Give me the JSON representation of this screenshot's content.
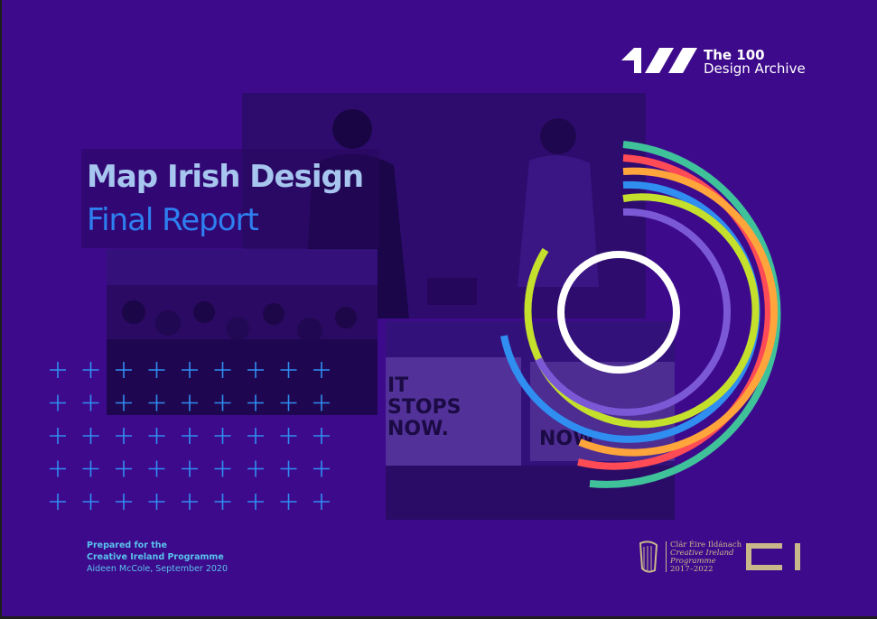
{
  "brand": {
    "logo_line1": "The 100",
    "logo_line2": "Design Archive"
  },
  "title": {
    "line1": "Map Irish Design",
    "line2": "Final Report"
  },
  "photos": {
    "poster_text_left": "IT STOPS NOW.",
    "poster_text_right": "NOW"
  },
  "prepared": {
    "line1": "Prepared for the",
    "line2": "Creative Ireland Programme",
    "line3": "Aideen McCole, September 2020"
  },
  "government": {
    "line1": "Clár Éire Ildánach",
    "line2": "Creative Ireland",
    "line3": "Programme",
    "line4": "2017–2022"
  },
  "colors": {
    "background": "#3d0a8c",
    "title_light": "#a7c6ef",
    "title_blue": "#2e7ff0",
    "ring_colors": [
      "#3fc29a",
      "#ff4b55",
      "#ffa53b",
      "#2f8ef0",
      "#c4e02c",
      "#7b58d6",
      "#ffffff"
    ],
    "plus_color": "#2f8ef0",
    "gold": "#c9b98a"
  },
  "icons": [
    "the-100-logo-icon",
    "harp-icon",
    "ci-logo-icon",
    "plus-grid-icon"
  ]
}
